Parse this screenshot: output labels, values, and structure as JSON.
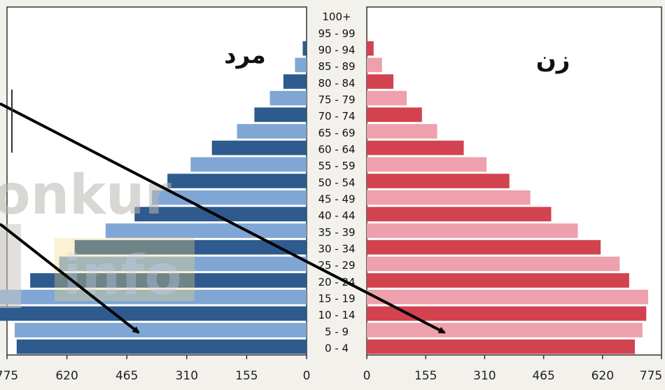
{
  "chart_data": {
    "type": "bar",
    "orientation": "horizontal-pyramid",
    "age_groups": [
      "0 - 4",
      "5 - 9",
      "10 - 14",
      "15 - 19",
      "20 - 24",
      "25 - 29",
      "30 - 34",
      "35 - 39",
      "40 - 44",
      "45 - 49",
      "50 - 54",
      "55 - 59",
      "60 - 64",
      "65 - 69",
      "70 - 74",
      "75 - 79",
      "80 - 84",
      "85 - 89",
      "90 - 94",
      "95 - 99",
      "100+"
    ],
    "left_panel": {
      "title": "مرد",
      "values": [
        750,
        755,
        800,
        800,
        715,
        640,
        600,
        520,
        445,
        400,
        360,
        300,
        245,
        180,
        135,
        95,
        60,
        30,
        10,
        0,
        0
      ],
      "ticks": [
        "775",
        "620",
        "465",
        "310",
        "155",
        "0"
      ],
      "colors": [
        "#2e5a8e",
        "#7fa6d4"
      ]
    },
    "right_panel": {
      "title": "زن",
      "values": [
        705,
        725,
        735,
        740,
        690,
        665,
        615,
        555,
        485,
        430,
        375,
        315,
        255,
        185,
        145,
        105,
        70,
        40,
        18,
        0,
        0
      ],
      "ticks": [
        "0",
        "155",
        "310",
        "465",
        "620",
        "775"
      ],
      "colors": [
        "#d2434f",
        "#eea0ac"
      ]
    },
    "xlim": [
      0,
      775
    ]
  },
  "watermark": {
    "text_top": "onkur",
    "text_bottom": "info"
  }
}
